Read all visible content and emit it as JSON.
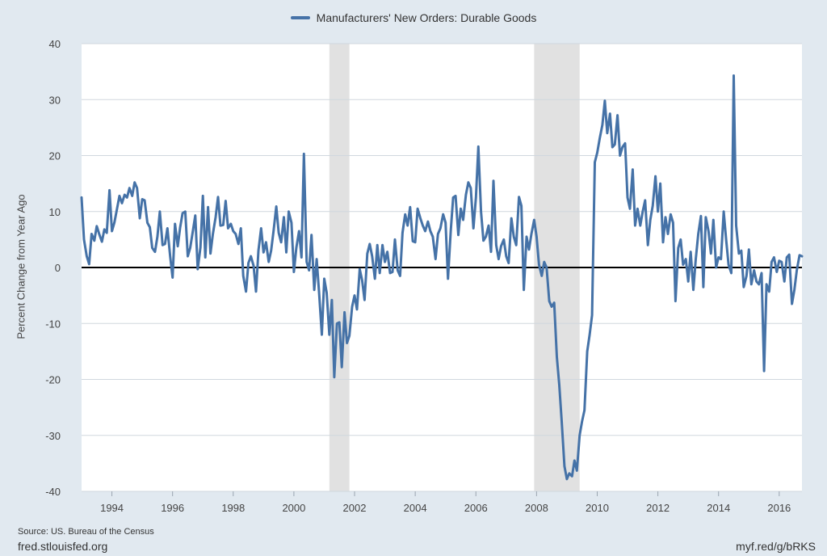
{
  "legend": {
    "label": "Manufacturers' New Orders: Durable Goods"
  },
  "footer": {
    "source": "Source: US. Bureau of the Census",
    "site": "fred.stlouisfed.org",
    "shortlink": "myf.red/g/bRKS"
  },
  "colors": {
    "series": "#4572a7",
    "recession": "#e1e1e1",
    "plot_bg": "#ffffff",
    "page_bg": "#e1e9f0",
    "zero_line": "#000000"
  },
  "chart_data": {
    "type": "line",
    "title": "",
    "xlabel": "",
    "ylabel": "Percent Change from Year Ago",
    "xlim": [
      1993.0,
      2016.75
    ],
    "ylim": [
      -40,
      40
    ],
    "y_ticks": [
      40,
      30,
      20,
      10,
      0,
      -10,
      -20,
      -30,
      -40
    ],
    "x_ticks": [
      1994,
      1996,
      1998,
      2000,
      2002,
      2004,
      2006,
      2008,
      2010,
      2012,
      2014,
      2016
    ],
    "grid": true,
    "legend_position": "top-center",
    "recessions": [
      [
        2001.17,
        2001.83
      ],
      [
        2007.92,
        2009.42
      ]
    ],
    "series": [
      {
        "name": "Manufacturers' New Orders: Durable Goods",
        "points": [
          [
            1993.0,
            12.5
          ],
          [
            1993.08,
            5.0
          ],
          [
            1993.17,
            2.0
          ],
          [
            1993.25,
            0.6
          ],
          [
            1993.33,
            6.0
          ],
          [
            1993.42,
            4.8
          ],
          [
            1993.5,
            7.4
          ],
          [
            1993.58,
            6.0
          ],
          [
            1993.67,
            4.6
          ],
          [
            1993.75,
            6.8
          ],
          [
            1993.83,
            6.2
          ],
          [
            1993.92,
            13.8
          ],
          [
            1994.0,
            6.5
          ],
          [
            1994.08,
            8.0
          ],
          [
            1994.17,
            10.5
          ],
          [
            1994.25,
            12.8
          ],
          [
            1994.33,
            11.5
          ],
          [
            1994.42,
            13.0
          ],
          [
            1994.5,
            12.5
          ],
          [
            1994.58,
            14.2
          ],
          [
            1994.67,
            12.8
          ],
          [
            1994.75,
            15.2
          ],
          [
            1994.83,
            14.2
          ],
          [
            1994.92,
            8.8
          ],
          [
            1995.0,
            12.2
          ],
          [
            1995.08,
            12.0
          ],
          [
            1995.17,
            8.0
          ],
          [
            1995.25,
            7.2
          ],
          [
            1995.33,
            3.5
          ],
          [
            1995.42,
            2.8
          ],
          [
            1995.5,
            5.5
          ],
          [
            1995.58,
            10.0
          ],
          [
            1995.67,
            4.0
          ],
          [
            1995.75,
            4.2
          ],
          [
            1995.83,
            7.0
          ],
          [
            1995.92,
            2.0
          ],
          [
            1996.0,
            -1.8
          ],
          [
            1996.08,
            7.8
          ],
          [
            1996.17,
            3.8
          ],
          [
            1996.25,
            7.2
          ],
          [
            1996.33,
            9.7
          ],
          [
            1996.42,
            10.0
          ],
          [
            1996.5,
            2.0
          ],
          [
            1996.58,
            3.5
          ],
          [
            1996.67,
            6.5
          ],
          [
            1996.75,
            9.3
          ],
          [
            1996.83,
            -0.3
          ],
          [
            1996.92,
            3.6
          ],
          [
            1997.0,
            12.8
          ],
          [
            1997.08,
            1.8
          ],
          [
            1997.17,
            10.8
          ],
          [
            1997.25,
            2.5
          ],
          [
            1997.33,
            6.0
          ],
          [
            1997.42,
            9.0
          ],
          [
            1997.5,
            12.6
          ],
          [
            1997.58,
            7.5
          ],
          [
            1997.67,
            7.6
          ],
          [
            1997.75,
            11.9
          ],
          [
            1997.83,
            7.0
          ],
          [
            1997.92,
            7.8
          ],
          [
            1998.0,
            6.5
          ],
          [
            1998.08,
            6.0
          ],
          [
            1998.17,
            4.2
          ],
          [
            1998.25,
            7.0
          ],
          [
            1998.33,
            -1.5
          ],
          [
            1998.42,
            -4.3
          ],
          [
            1998.5,
            0.8
          ],
          [
            1998.58,
            2.0
          ],
          [
            1998.67,
            0.3
          ],
          [
            1998.75,
            -4.3
          ],
          [
            1998.83,
            3.0
          ],
          [
            1998.92,
            7.0
          ],
          [
            1999.0,
            2.7
          ],
          [
            1999.08,
            4.5
          ],
          [
            1999.17,
            1.0
          ],
          [
            1999.25,
            3.0
          ],
          [
            1999.33,
            6.5
          ],
          [
            1999.42,
            10.9
          ],
          [
            1999.5,
            6.2
          ],
          [
            1999.58,
            4.5
          ],
          [
            1999.67,
            9.0
          ],
          [
            1999.75,
            2.7
          ],
          [
            1999.83,
            10.0
          ],
          [
            1999.92,
            8.0
          ],
          [
            2000.0,
            -0.8
          ],
          [
            2000.08,
            3.5
          ],
          [
            2000.17,
            6.5
          ],
          [
            2000.25,
            1.8
          ],
          [
            2000.33,
            20.3
          ],
          [
            2000.42,
            1.0
          ],
          [
            2000.5,
            -0.5
          ],
          [
            2000.58,
            5.8
          ],
          [
            2000.67,
            -4.0
          ],
          [
            2000.75,
            1.5
          ],
          [
            2000.83,
            -4.5
          ],
          [
            2000.92,
            -12.0
          ],
          [
            2001.0,
            -2.0
          ],
          [
            2001.08,
            -4.5
          ],
          [
            2001.17,
            -12.0
          ],
          [
            2001.25,
            -5.8
          ],
          [
            2001.33,
            -19.6
          ],
          [
            2001.42,
            -10.0
          ],
          [
            2001.5,
            -9.8
          ],
          [
            2001.58,
            -17.8
          ],
          [
            2001.67,
            -8.0
          ],
          [
            2001.75,
            -13.5
          ],
          [
            2001.83,
            -12.2
          ],
          [
            2001.92,
            -7.0
          ],
          [
            2002.0,
            -5.0
          ],
          [
            2002.08,
            -7.5
          ],
          [
            2002.17,
            -0.3
          ],
          [
            2002.25,
            -2.3
          ],
          [
            2002.33,
            -5.8
          ],
          [
            2002.42,
            2.5
          ],
          [
            2002.5,
            4.2
          ],
          [
            2002.58,
            2.0
          ],
          [
            2002.67,
            -2.0
          ],
          [
            2002.75,
            4.0
          ],
          [
            2002.83,
            -1.0
          ],
          [
            2002.92,
            4.0
          ],
          [
            2003.0,
            1.0
          ],
          [
            2003.08,
            2.8
          ],
          [
            2003.17,
            -1.0
          ],
          [
            2003.25,
            -0.8
          ],
          [
            2003.33,
            5.0
          ],
          [
            2003.42,
            -0.5
          ],
          [
            2003.5,
            -1.5
          ],
          [
            2003.58,
            6.2
          ],
          [
            2003.67,
            9.5
          ],
          [
            2003.75,
            7.5
          ],
          [
            2003.83,
            10.8
          ],
          [
            2003.92,
            4.7
          ],
          [
            2004.0,
            4.5
          ],
          [
            2004.08,
            10.5
          ],
          [
            2004.17,
            8.8
          ],
          [
            2004.25,
            7.5
          ],
          [
            2004.33,
            6.5
          ],
          [
            2004.42,
            8.2
          ],
          [
            2004.5,
            6.5
          ],
          [
            2004.58,
            5.5
          ],
          [
            2004.67,
            1.5
          ],
          [
            2004.75,
            6.0
          ],
          [
            2004.83,
            7.0
          ],
          [
            2004.92,
            9.5
          ],
          [
            2005.0,
            8.0
          ],
          [
            2005.08,
            -2.0
          ],
          [
            2005.17,
            6.5
          ],
          [
            2005.25,
            12.5
          ],
          [
            2005.33,
            12.8
          ],
          [
            2005.42,
            5.8
          ],
          [
            2005.5,
            10.5
          ],
          [
            2005.58,
            8.5
          ],
          [
            2005.67,
            13.0
          ],
          [
            2005.75,
            15.2
          ],
          [
            2005.83,
            14.2
          ],
          [
            2005.92,
            7.0
          ],
          [
            2006.0,
            12.5
          ],
          [
            2006.08,
            21.6
          ],
          [
            2006.17,
            10.0
          ],
          [
            2006.25,
            4.8
          ],
          [
            2006.33,
            5.5
          ],
          [
            2006.42,
            7.5
          ],
          [
            2006.5,
            2.8
          ],
          [
            2006.58,
            15.5
          ],
          [
            2006.67,
            4.0
          ],
          [
            2006.75,
            1.5
          ],
          [
            2006.83,
            3.8
          ],
          [
            2006.92,
            5.0
          ],
          [
            2007.0,
            2.0
          ],
          [
            2007.08,
            0.8
          ],
          [
            2007.17,
            8.8
          ],
          [
            2007.25,
            5.5
          ],
          [
            2007.33,
            4.0
          ],
          [
            2007.42,
            12.6
          ],
          [
            2007.5,
            11.0
          ],
          [
            2007.58,
            -4.0
          ],
          [
            2007.67,
            5.5
          ],
          [
            2007.75,
            3.2
          ],
          [
            2007.83,
            6.0
          ],
          [
            2007.92,
            8.5
          ],
          [
            2008.0,
            5.5
          ],
          [
            2008.08,
            0.5
          ],
          [
            2008.17,
            -1.5
          ],
          [
            2008.25,
            1.0
          ],
          [
            2008.33,
            0.0
          ],
          [
            2008.42,
            -6.0
          ],
          [
            2008.5,
            -7.0
          ],
          [
            2008.58,
            -6.3
          ],
          [
            2008.67,
            -16.0
          ],
          [
            2008.75,
            -21.0
          ],
          [
            2008.83,
            -27.5
          ],
          [
            2008.92,
            -35.5
          ],
          [
            2009.0,
            -37.8
          ],
          [
            2009.08,
            -36.8
          ],
          [
            2009.17,
            -37.3
          ],
          [
            2009.25,
            -34.5
          ],
          [
            2009.33,
            -36.3
          ],
          [
            2009.42,
            -30.0
          ],
          [
            2009.5,
            -27.5
          ],
          [
            2009.58,
            -25.5
          ],
          [
            2009.67,
            -15.0
          ],
          [
            2009.75,
            -12.0
          ],
          [
            2009.83,
            -8.5
          ],
          [
            2009.92,
            18.8
          ],
          [
            2010.0,
            20.5
          ],
          [
            2010.08,
            23.0
          ],
          [
            2010.17,
            25.5
          ],
          [
            2010.25,
            29.8
          ],
          [
            2010.33,
            24.0
          ],
          [
            2010.42,
            27.5
          ],
          [
            2010.5,
            21.5
          ],
          [
            2010.58,
            22.0
          ],
          [
            2010.67,
            27.2
          ],
          [
            2010.75,
            20.0
          ],
          [
            2010.83,
            21.5
          ],
          [
            2010.92,
            22.2
          ],
          [
            2011.0,
            12.5
          ],
          [
            2011.08,
            10.5
          ],
          [
            2011.17,
            17.5
          ],
          [
            2011.25,
            7.5
          ],
          [
            2011.33,
            10.5
          ],
          [
            2011.42,
            7.5
          ],
          [
            2011.5,
            10.0
          ],
          [
            2011.58,
            12.0
          ],
          [
            2011.67,
            4.0
          ],
          [
            2011.75,
            8.5
          ],
          [
            2011.83,
            11.0
          ],
          [
            2011.92,
            16.3
          ],
          [
            2012.0,
            10.0
          ],
          [
            2012.08,
            15.0
          ],
          [
            2012.17,
            4.5
          ],
          [
            2012.25,
            9.0
          ],
          [
            2012.33,
            6.0
          ],
          [
            2012.42,
            9.5
          ],
          [
            2012.5,
            8.0
          ],
          [
            2012.58,
            -6.0
          ],
          [
            2012.67,
            3.5
          ],
          [
            2012.75,
            5.0
          ],
          [
            2012.83,
            0.5
          ],
          [
            2012.92,
            1.5
          ],
          [
            2013.0,
            -2.5
          ],
          [
            2013.08,
            2.8
          ],
          [
            2013.17,
            -4.0
          ],
          [
            2013.25,
            1.5
          ],
          [
            2013.33,
            6.0
          ],
          [
            2013.42,
            9.2
          ],
          [
            2013.5,
            -3.5
          ],
          [
            2013.58,
            9.0
          ],
          [
            2013.67,
            6.5
          ],
          [
            2013.75,
            2.5
          ],
          [
            2013.83,
            8.5
          ],
          [
            2013.92,
            0.0
          ],
          [
            2014.0,
            1.8
          ],
          [
            2014.08,
            1.5
          ],
          [
            2014.17,
            10.0
          ],
          [
            2014.25,
            5.0
          ],
          [
            2014.33,
            0.5
          ],
          [
            2014.42,
            -1.0
          ],
          [
            2014.5,
            34.3
          ],
          [
            2014.58,
            7.5
          ],
          [
            2014.67,
            2.5
          ],
          [
            2014.75,
            3.0
          ],
          [
            2014.83,
            -3.5
          ],
          [
            2014.92,
            -1.5
          ],
          [
            2015.0,
            3.2
          ],
          [
            2015.08,
            -3.0
          ],
          [
            2015.17,
            -0.5
          ],
          [
            2015.25,
            -2.5
          ],
          [
            2015.33,
            -3.0
          ],
          [
            2015.42,
            -1.0
          ],
          [
            2015.5,
            -18.5
          ],
          [
            2015.58,
            -3.0
          ],
          [
            2015.67,
            -4.3
          ],
          [
            2015.75,
            1.0
          ],
          [
            2015.83,
            1.8
          ],
          [
            2015.92,
            -0.8
          ],
          [
            2016.0,
            1.2
          ],
          [
            2016.08,
            1.0
          ],
          [
            2016.17,
            -2.5
          ],
          [
            2016.25,
            1.8
          ],
          [
            2016.33,
            2.3
          ],
          [
            2016.42,
            -6.5
          ],
          [
            2016.5,
            -4.0
          ],
          [
            2016.58,
            -0.5
          ],
          [
            2016.67,
            2.2
          ],
          [
            2016.75,
            2.0
          ]
        ]
      }
    ]
  }
}
